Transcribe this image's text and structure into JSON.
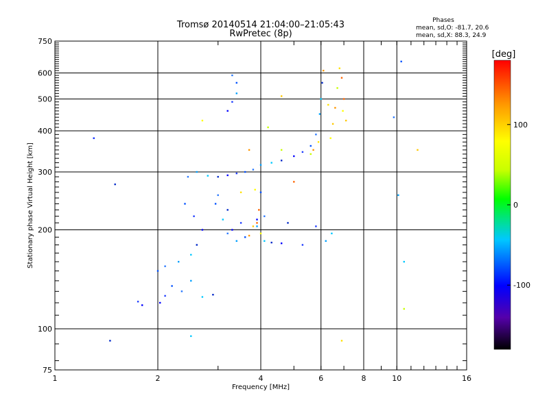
{
  "header": {
    "title": "Tromsø 20140514 21:04:00–21:05:43",
    "subtitle": "RwPretec (8p)",
    "stats_title": "Phases",
    "stats_line1": "mean, sd,O: -81.7, 20.6",
    "stats_line2": "mean, sd,X: 88.3, 24.9"
  },
  "chart_data": {
    "type": "scatter",
    "xlabel": "Frequency [MHz]",
    "ylabel": "Stationary phase Virtual Height [km]",
    "xscale": "log",
    "yscale": "log",
    "xlim": [
      1,
      16
    ],
    "ylim": [
      75,
      750
    ],
    "xticks": [
      1,
      2,
      4,
      6,
      8,
      10,
      16
    ],
    "xtick_labels": [
      "1",
      "2",
      "4",
      "6",
      "8",
      "10",
      "16"
    ],
    "yticks": [
      75,
      100,
      200,
      300,
      400,
      500,
      600,
      750
    ],
    "ytick_labels": [
      "75",
      "100",
      "200",
      "300",
      "400",
      "500",
      "600",
      "750"
    ],
    "grid": true,
    "colorbar": {
      "label": "[deg]",
      "range": [
        -180,
        180
      ],
      "ticks": [
        100,
        0,
        -100
      ],
      "tick_labels": [
        "100",
        "0",
        "-100"
      ],
      "colormap": "rainbow",
      "colors": [
        "#000000",
        "#5500aa",
        "#0000ff",
        "#00c8ff",
        "#00e673",
        "#00ff00",
        "#c8ff00",
        "#ffff00",
        "#ff9600",
        "#ff0000"
      ]
    },
    "series": [
      {
        "points": [
          [
            2.03,
            120
          ],
          [
            2.1,
            126
          ],
          [
            2.2,
            135
          ],
          [
            2.35,
            130
          ],
          [
            2.5,
            140
          ],
          [
            2.7,
            125
          ],
          [
            2.9,
            127
          ],
          [
            1.8,
            118
          ],
          [
            1.75,
            121
          ],
          [
            2.0,
            150
          ],
          [
            2.1,
            155
          ],
          [
            2.3,
            160
          ],
          [
            2.5,
            168
          ],
          [
            2.6,
            180
          ],
          [
            2.7,
            200
          ],
          [
            2.55,
            220
          ],
          [
            2.4,
            240
          ],
          [
            2.45,
            290
          ],
          [
            2.6,
            300
          ],
          [
            2.8,
            292
          ],
          [
            3.0,
            290
          ],
          [
            3.2,
            293
          ],
          [
            3.4,
            297
          ],
          [
            3.6,
            300
          ],
          [
            3.8,
            305
          ],
          [
            4.0,
            315
          ],
          [
            4.3,
            320
          ],
          [
            4.6,
            325
          ],
          [
            5.0,
            335
          ],
          [
            5.3,
            345
          ],
          [
            5.6,
            360
          ],
          [
            5.8,
            390
          ],
          [
            5.95,
            450
          ],
          [
            6.0,
            500
          ],
          [
            6.05,
            560
          ],
          [
            3.2,
            460
          ],
          [
            3.3,
            490
          ],
          [
            3.4,
            560
          ],
          [
            3.3,
            590
          ],
          [
            3.4,
            520
          ],
          [
            3.1,
            215
          ],
          [
            3.2,
            230
          ],
          [
            3.3,
            200
          ],
          [
            3.5,
            210
          ],
          [
            3.6,
            190
          ],
          [
            3.2,
            195
          ],
          [
            3.4,
            185
          ],
          [
            4.1,
            185
          ],
          [
            4.3,
            183
          ],
          [
            4.6,
            182
          ],
          [
            5.3,
            180
          ],
          [
            4.0,
            260
          ],
          [
            4.1,
            220
          ],
          [
            3.9,
            205
          ],
          [
            2.5,
            95
          ],
          [
            1.45,
            92
          ],
          [
            1.3,
            380
          ],
          [
            1.3,
            380
          ],
          [
            10.3,
            650
          ],
          [
            9.8,
            440
          ],
          [
            10.1,
            255
          ],
          [
            10.5,
            160
          ],
          [
            1.5,
            275
          ],
          [
            3.9,
            215
          ],
          [
            5.8,
            205
          ],
          [
            2.95,
            240
          ],
          [
            3.0,
            255
          ],
          [
            6.2,
            185
          ],
          [
            6.45,
            195
          ],
          [
            4.8,
            210
          ]
        ]
      },
      {
        "points": [
          [
            6.4,
            380
          ],
          [
            6.5,
            420
          ],
          [
            6.6,
            470
          ],
          [
            6.7,
            540
          ],
          [
            6.8,
            620
          ],
          [
            6.9,
            580
          ],
          [
            6.95,
            460
          ],
          [
            7.1,
            430
          ],
          [
            5.7,
            350
          ],
          [
            5.6,
            340
          ],
          [
            5.9,
            370
          ],
          [
            3.9,
            210
          ],
          [
            4.0,
            195
          ],
          [
            3.8,
            205
          ],
          [
            3.7,
            192
          ],
          [
            4.2,
            410
          ],
          [
            6.3,
            480
          ],
          [
            7.0,
            500
          ],
          [
            2.7,
            430
          ],
          [
            11.5,
            350
          ],
          [
            3.7,
            350
          ],
          [
            4.6,
            350
          ],
          [
            3.5,
            260
          ],
          [
            3.95,
            230
          ],
          [
            3.85,
            265
          ],
          [
            4.6,
            510
          ],
          [
            6.1,
            610
          ],
          [
            10.5,
            115
          ],
          [
            6.9,
            92
          ],
          [
            5.0,
            280
          ]
        ]
      }
    ]
  }
}
